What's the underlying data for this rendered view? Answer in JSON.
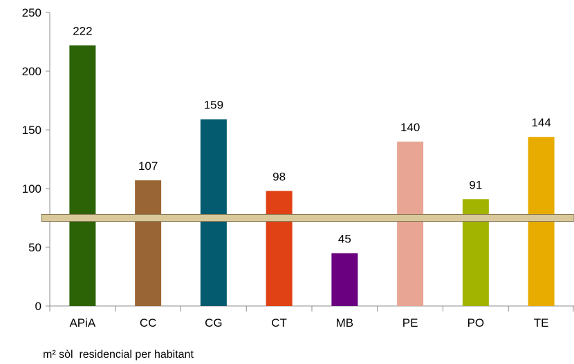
{
  "chart_data": {
    "type": "bar",
    "categories": [
      "APiA",
      "CC",
      "CG",
      "CT",
      "MB",
      "PE",
      "PO",
      "TE"
    ],
    "values": [
      222,
      107,
      159,
      98,
      45,
      140,
      91,
      144
    ],
    "data_labels": [
      "222",
      "107",
      "159",
      "98",
      "45",
      "140",
      "91",
      "144"
    ],
    "colors": [
      "#2d6307",
      "#9a6535",
      "#045a6e",
      "#e04216",
      "#6a0080",
      "#e8a593",
      "#a2b300",
      "#e8ac00"
    ],
    "ylim": [
      0,
      250
    ],
    "yticks": [
      0,
      50,
      100,
      150,
      200,
      250
    ],
    "reference_line": {
      "value": 75,
      "color": "#d8c89a"
    },
    "grid": false,
    "xlabel": "",
    "ylabel": ""
  },
  "caption": "m² sòl  residencial per habitant"
}
